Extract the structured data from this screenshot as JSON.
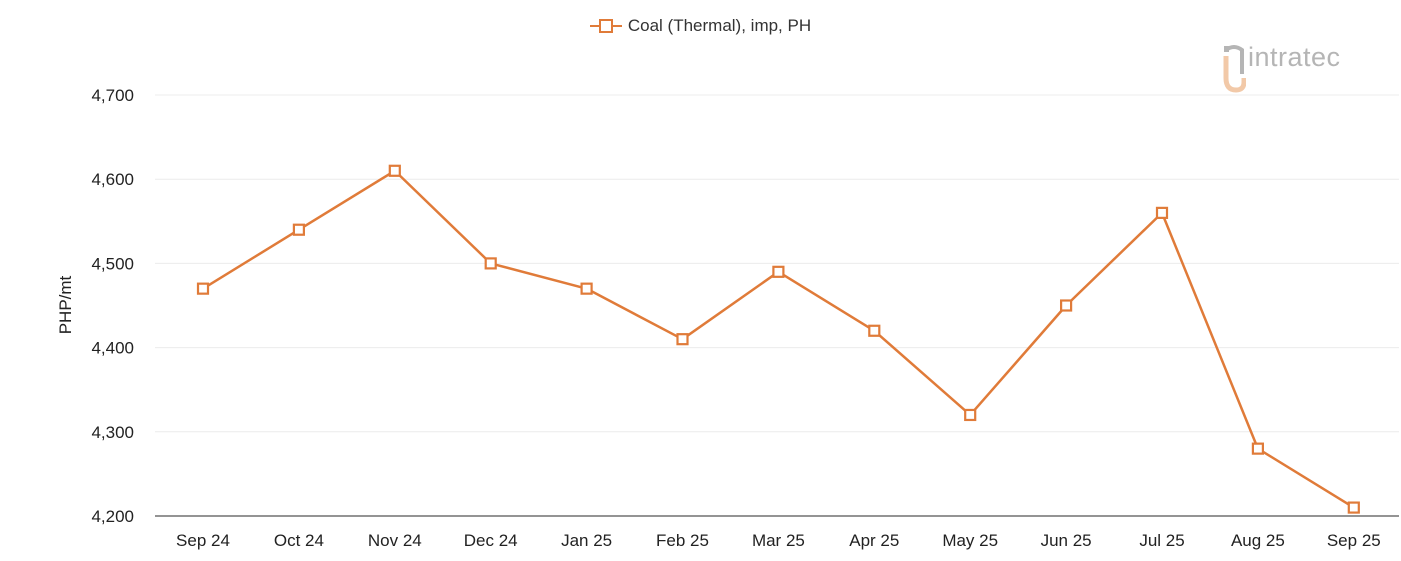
{
  "legend": {
    "label": "Coal (Thermal), imp, PH"
  },
  "logo": {
    "text": "intratec"
  },
  "colors": {
    "series": "#e07b39",
    "grid": "#ececec",
    "axis": "#555555",
    "logo_accent": "#f2c9a8",
    "logo_gray": "#b5b5b5"
  },
  "chart_data": {
    "type": "line",
    "categories": [
      "Sep 24",
      "Oct 24",
      "Nov 24",
      "Dec 24",
      "Jan 25",
      "Feb 25",
      "Mar 25",
      "Apr 25",
      "May 25",
      "Jun 25",
      "Jul 25",
      "Aug 25",
      "Sep 25"
    ],
    "series": [
      {
        "name": "Coal (Thermal), imp, PH",
        "values": [
          4470,
          4540,
          4610,
          4500,
          4470,
          4410,
          4490,
          4420,
          4320,
          4450,
          4560,
          4280,
          4210
        ]
      }
    ],
    "ylabel": "PHP/mt",
    "xlabel": "",
    "ylim": [
      4200,
      4700
    ],
    "yticks": [
      4200,
      4300,
      4400,
      4500,
      4600,
      4700
    ],
    "ytick_labels": [
      "4,200",
      "4,300",
      "4,400",
      "4,500",
      "4,600",
      "4,700"
    ],
    "grid": true,
    "legend_position": "top-center",
    "marker": "open-square"
  }
}
